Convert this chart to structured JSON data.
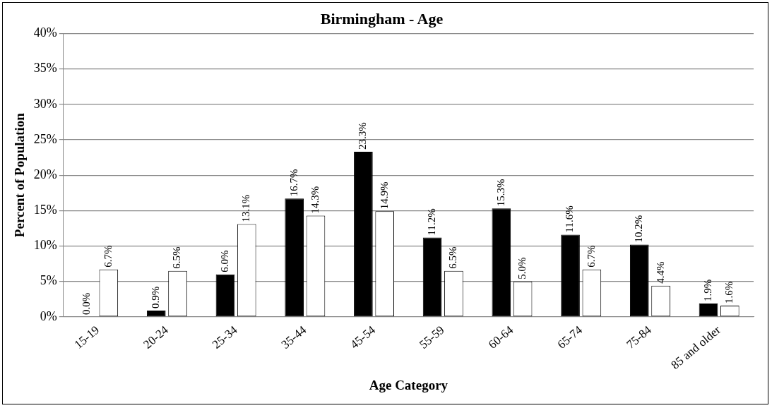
{
  "chart_data": {
    "type": "bar",
    "title": "Birmingham - Age",
    "xlabel": "Age Category",
    "ylabel": "Percent of Population",
    "categories": [
      "15-19",
      "20-24",
      "25-34",
      "35-44",
      "45-54",
      "55-59",
      "60-64",
      "65-74",
      "75-84",
      "85 and older"
    ],
    "series": [
      {
        "color": "#000000",
        "values": [
          0.0,
          0.9,
          6.0,
          16.7,
          23.3,
          11.2,
          15.3,
          11.6,
          10.2,
          1.9
        ],
        "value_labels": [
          "0.0%",
          "0.9%",
          "6.0%",
          "16.7%",
          "23.3%",
          "11.2%",
          "15.3%",
          "11.6%",
          "10.2%",
          "1.9%"
        ]
      },
      {
        "color": "#ffffff",
        "values": [
          6.7,
          6.5,
          13.1,
          14.3,
          14.9,
          6.5,
          5.0,
          6.7,
          4.4,
          1.6
        ],
        "value_labels": [
          "6.7%",
          "6.5%",
          "13.1%",
          "14.3%",
          "14.9%",
          "6.5%",
          "5.0%",
          "6.7%",
          "4.4%",
          "1.6%"
        ]
      }
    ],
    "ylim": [
      0,
      40
    ],
    "yticks": [
      {
        "value": 0,
        "label": "0%"
      },
      {
        "value": 5,
        "label": "5%"
      },
      {
        "value": 10,
        "label": "10%"
      },
      {
        "value": 15,
        "label": "15%"
      },
      {
        "value": 20,
        "label": "20%"
      },
      {
        "value": 25,
        "label": "25%"
      },
      {
        "value": 30,
        "label": "30%"
      },
      {
        "value": 35,
        "label": "35%"
      },
      {
        "value": 40,
        "label": "40%"
      }
    ],
    "grid": "y",
    "legend": false
  }
}
